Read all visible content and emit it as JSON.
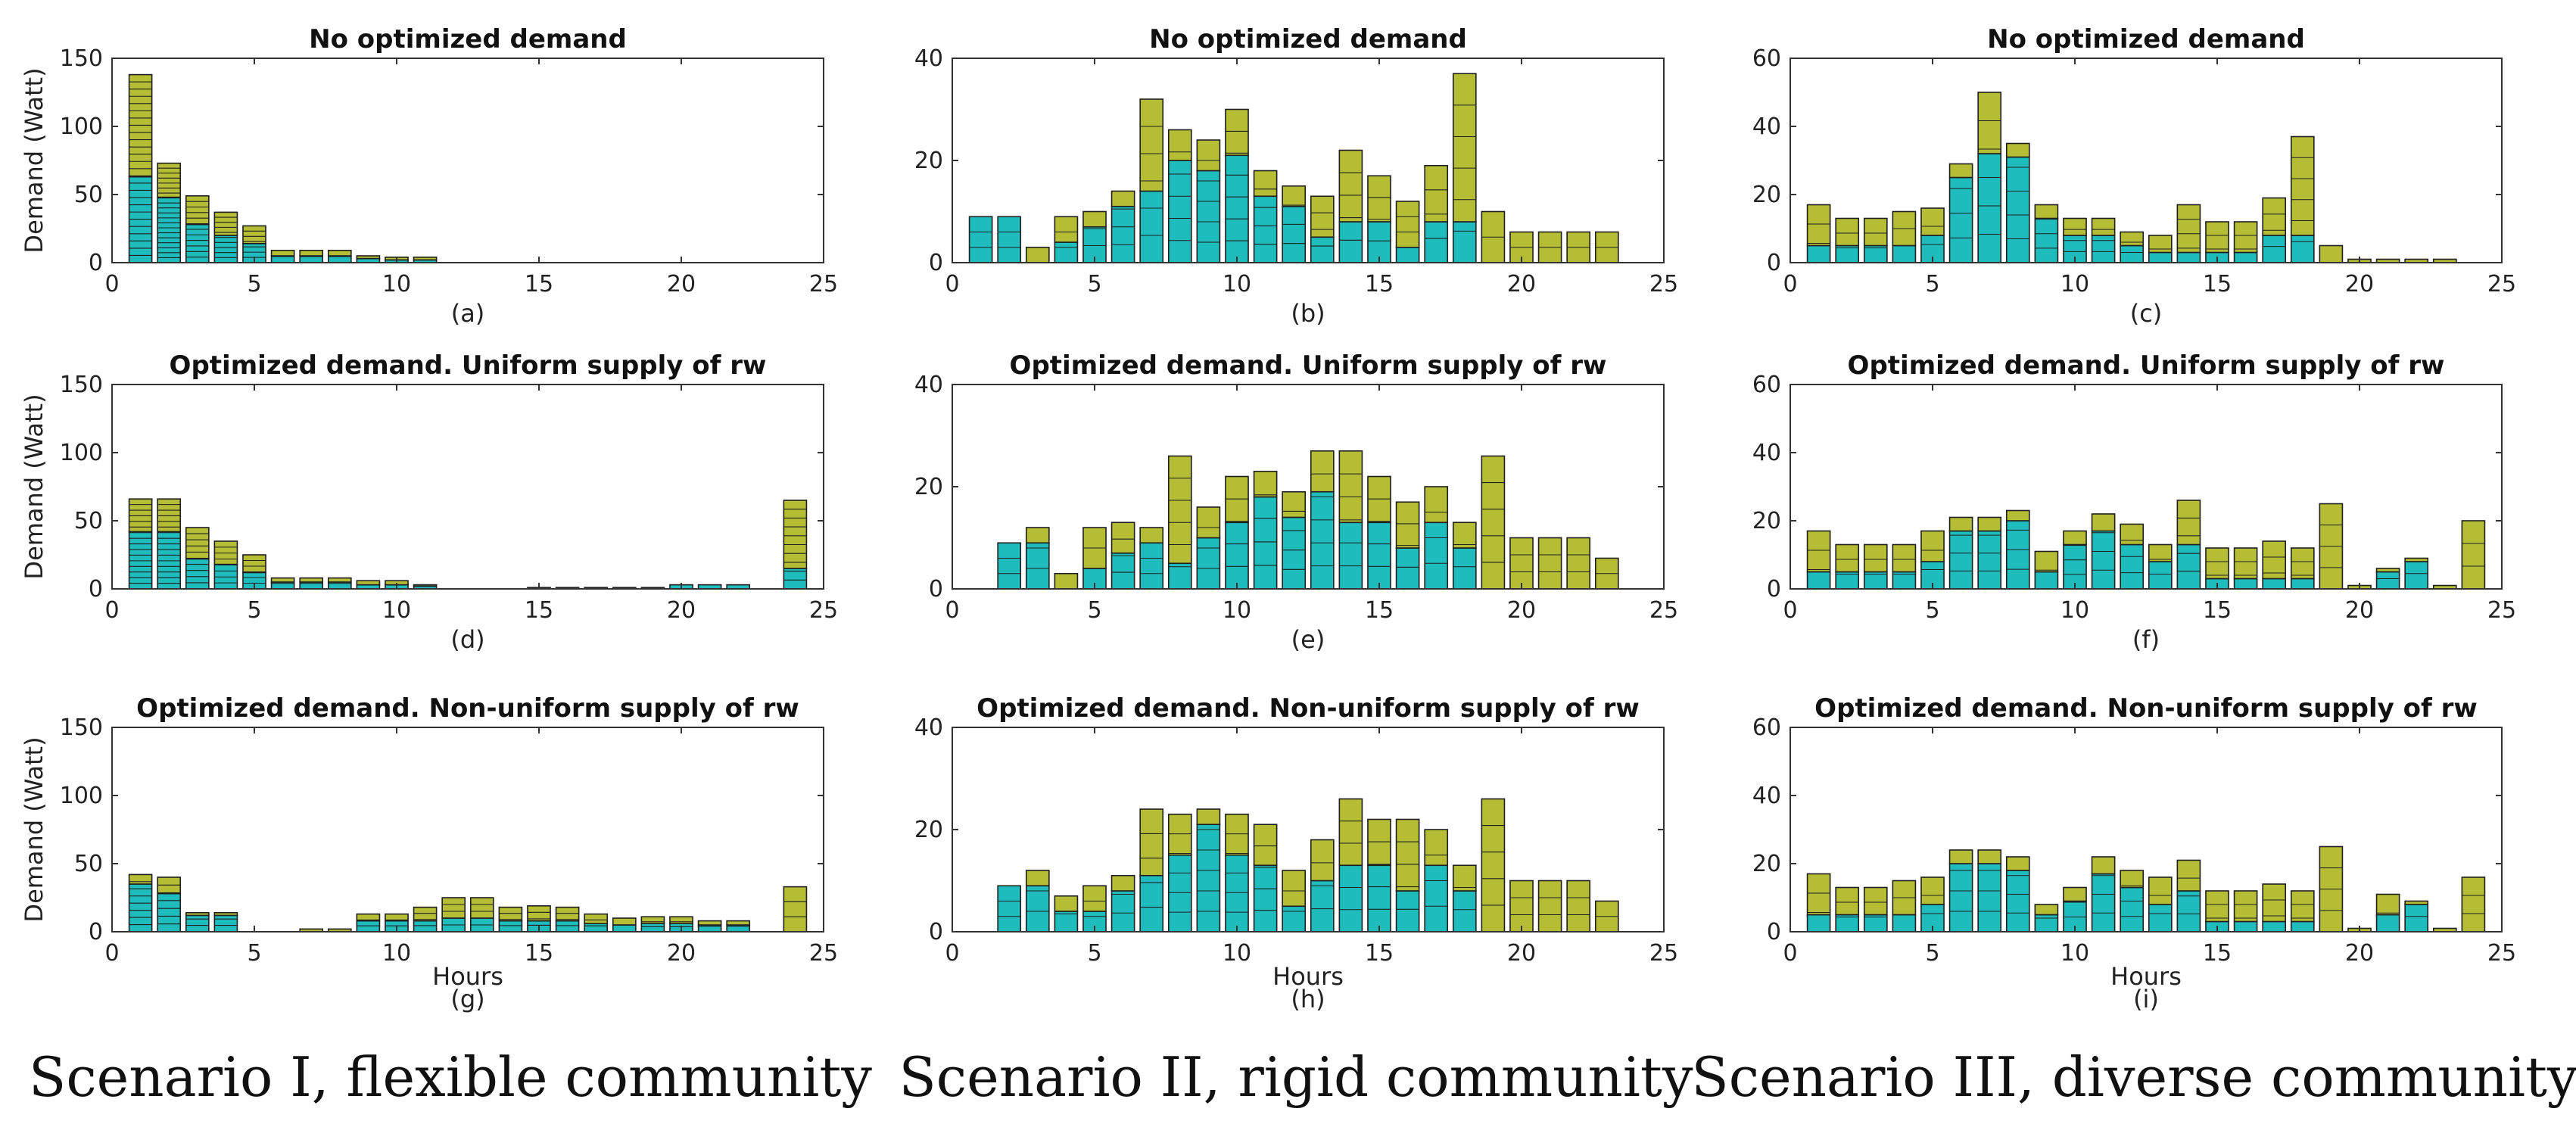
{
  "colors": {
    "base": "#1ebcbc",
    "flex": "#b5bd34"
  },
  "scenario_labels": [
    "Scenario I, flexible community",
    "Scenario II, rigid community",
    "Scenario III, diverse community"
  ],
  "chart_data": [
    {
      "id": "a",
      "type": "bar",
      "title": "No optimized demand",
      "subplot_label": "(a)",
      "ylabel": "Demand (Watt)",
      "xlabel": "",
      "ylim": [
        0,
        150
      ],
      "yticks": [
        0,
        50,
        100,
        150
      ],
      "xlim": [
        0,
        25
      ],
      "xticks": [
        0,
        5,
        10,
        15,
        20,
        25
      ],
      "x": [
        1,
        2,
        3,
        4,
        5,
        6,
        7,
        8,
        9,
        10,
        11
      ],
      "series": [
        {
          "name": "base",
          "values": [
            63,
            48,
            28,
            20,
            14,
            5,
            5,
            5,
            3,
            2,
            2
          ]
        },
        {
          "name": "flex",
          "values": [
            75,
            25,
            21,
            17,
            13,
            4,
            4,
            4,
            2,
            2,
            2
          ]
        }
      ],
      "segments": [
        26,
        20,
        12,
        10,
        7,
        2,
        2,
        2,
        1,
        1,
        1
      ]
    },
    {
      "id": "b",
      "type": "bar",
      "title": "No optimized demand",
      "subplot_label": "(b)",
      "ylabel": "",
      "xlabel": "",
      "ylim": [
        0,
        40
      ],
      "yticks": [
        0,
        20,
        40
      ],
      "xlim": [
        0,
        25
      ],
      "xticks": [
        0,
        5,
        10,
        15,
        20,
        25
      ],
      "x": [
        1,
        2,
        3,
        4,
        5,
        6,
        7,
        8,
        9,
        10,
        11,
        12,
        13,
        14,
        15,
        16,
        17,
        18,
        19,
        20,
        21,
        22,
        23
      ],
      "series": [
        {
          "name": "base",
          "values": [
            9,
            9,
            0,
            4,
            7,
            11,
            14,
            20,
            18,
            21,
            13,
            11,
            5,
            8,
            8,
            3,
            8,
            8,
            0,
            0,
            0,
            0,
            0
          ]
        },
        {
          "name": "flex",
          "values": [
            0,
            0,
            3,
            5,
            3,
            3,
            18,
            6,
            6,
            9,
            5,
            4,
            8,
            14,
            9,
            9,
            11,
            29,
            10,
            6,
            6,
            6,
            6
          ]
        }
      ],
      "segments": [
        3,
        3,
        1,
        3,
        3,
        4,
        6,
        6,
        6,
        7,
        5,
        4,
        4,
        5,
        4,
        4,
        4,
        6,
        2,
        2,
        2,
        2,
        2
      ]
    },
    {
      "id": "c",
      "type": "bar",
      "title": "No optimized demand",
      "subplot_label": "(c)",
      "ylabel": "",
      "xlabel": "",
      "ylim": [
        0,
        60
      ],
      "yticks": [
        0,
        20,
        40,
        60
      ],
      "xlim": [
        0,
        25
      ],
      "xticks": [
        0,
        5,
        10,
        15,
        20,
        25
      ],
      "x": [
        1,
        2,
        3,
        4,
        5,
        6,
        7,
        8,
        9,
        10,
        11,
        12,
        13,
        14,
        15,
        16,
        17,
        18,
        19,
        20,
        21,
        22,
        23
      ],
      "series": [
        {
          "name": "base",
          "values": [
            5,
            5,
            5,
            5,
            8,
            25,
            32,
            31,
            13,
            8,
            8,
            5,
            3,
            3,
            3,
            3,
            8,
            8,
            0,
            0,
            0,
            0,
            0
          ]
        },
        {
          "name": "flex",
          "values": [
            12,
            8,
            8,
            10,
            8,
            4,
            18,
            4,
            4,
            5,
            5,
            4,
            5,
            14,
            9,
            9,
            11,
            29,
            5,
            1,
            1,
            1,
            1
          ]
        }
      ],
      "segments": [
        3,
        3,
        3,
        3,
        3,
        4,
        6,
        5,
        4,
        4,
        4,
        3,
        2,
        4,
        3,
        3,
        4,
        6,
        1,
        1,
        1,
        1,
        1
      ]
    },
    {
      "id": "d",
      "type": "bar",
      "title": "Optimized demand. Uniform supply of rw",
      "subplot_label": "(d)",
      "ylabel": "Demand (Watt)",
      "xlabel": "",
      "ylim": [
        0,
        150
      ],
      "yticks": [
        0,
        50,
        100,
        150
      ],
      "xlim": [
        0,
        25
      ],
      "xticks": [
        0,
        5,
        10,
        15,
        20,
        25
      ],
      "x": [
        1,
        2,
        3,
        4,
        5,
        6,
        7,
        8,
        9,
        10,
        11,
        15,
        16,
        17,
        18,
        19,
        20,
        21,
        22,
        24
      ],
      "series": [
        {
          "name": "base",
          "values": [
            42,
            42,
            22,
            18,
            12,
            5,
            5,
            5,
            3,
            3,
            2,
            1,
            1,
            1,
            1,
            1,
            3,
            3,
            3,
            15
          ]
        },
        {
          "name": "flex",
          "values": [
            24,
            24,
            23,
            17,
            13,
            3,
            3,
            3,
            3,
            3,
            1,
            0,
            0,
            0,
            0,
            0,
            0,
            0,
            0,
            50
          ]
        }
      ],
      "segments": [
        16,
        16,
        10,
        8,
        6,
        2,
        2,
        2,
        2,
        2,
        1,
        1,
        1,
        1,
        1,
        1,
        1,
        1,
        1,
        10
      ]
    },
    {
      "id": "e",
      "type": "bar",
      "title": "Optimized demand. Uniform supply of rw",
      "subplot_label": "(e)",
      "ylabel": "",
      "xlabel": "",
      "ylim": [
        0,
        40
      ],
      "yticks": [
        0,
        20,
        40
      ],
      "xlim": [
        0,
        25
      ],
      "xticks": [
        0,
        5,
        10,
        15,
        20,
        25
      ],
      "x": [
        2,
        3,
        4,
        5,
        6,
        7,
        8,
        9,
        10,
        11,
        12,
        13,
        14,
        15,
        16,
        17,
        18,
        19,
        20,
        21,
        22,
        23
      ],
      "series": [
        {
          "name": "base",
          "values": [
            9,
            9,
            0,
            4,
            7,
            9,
            5,
            10,
            13,
            18,
            14,
            19,
            13,
            13,
            8,
            13,
            8,
            0,
            0,
            0,
            0,
            0
          ]
        },
        {
          "name": "flex",
          "values": [
            0,
            3,
            3,
            8,
            6,
            3,
            21,
            6,
            9,
            5,
            5,
            8,
            14,
            9,
            9,
            7,
            5,
            26,
            10,
            10,
            10,
            6
          ]
        }
      ],
      "segments": [
        3,
        3,
        1,
        3,
        4,
        4,
        6,
        4,
        5,
        5,
        5,
        6,
        6,
        5,
        4,
        4,
        3,
        5,
        3,
        3,
        3,
        2
      ]
    },
    {
      "id": "f",
      "type": "bar",
      "title": "Optimized demand. Uniform supply of rw",
      "subplot_label": "(f)",
      "ylabel": "",
      "xlabel": "",
      "ylim": [
        0,
        60
      ],
      "yticks": [
        0,
        20,
        40,
        60
      ],
      "xlim": [
        0,
        25
      ],
      "xticks": [
        0,
        5,
        10,
        15,
        20,
        25
      ],
      "x": [
        1,
        2,
        3,
        4,
        5,
        6,
        7,
        8,
        9,
        10,
        11,
        12,
        13,
        14,
        15,
        16,
        17,
        18,
        19,
        20,
        21,
        22,
        23,
        24
      ],
      "series": [
        {
          "name": "base",
          "values": [
            5,
            5,
            5,
            5,
            8,
            17,
            17,
            20,
            5,
            13,
            17,
            13,
            8,
            13,
            3,
            3,
            3,
            3,
            0,
            0,
            5,
            8,
            0,
            0
          ]
        },
        {
          "name": "flex",
          "values": [
            12,
            8,
            8,
            8,
            9,
            4,
            4,
            3,
            6,
            4,
            5,
            6,
            5,
            13,
            9,
            9,
            11,
            9,
            25,
            1,
            1,
            1,
            1,
            20
          ]
        }
      ],
      "segments": [
        3,
        3,
        3,
        3,
        3,
        4,
        4,
        4,
        2,
        4,
        4,
        4,
        3,
        5,
        3,
        3,
        3,
        3,
        4,
        1,
        2,
        2,
        1,
        3
      ]
    },
    {
      "id": "g",
      "type": "bar",
      "title": "Optimized demand. Non-uniform supply of rw",
      "subplot_label": "(g)",
      "ylabel": "Demand (Watt)",
      "xlabel": "Hours",
      "ylim": [
        0,
        150
      ],
      "yticks": [
        0,
        50,
        100,
        150
      ],
      "xlim": [
        0,
        25
      ],
      "xticks": [
        0,
        5,
        10,
        15,
        20,
        25
      ],
      "x": [
        1,
        2,
        3,
        4,
        7,
        8,
        9,
        10,
        11,
        12,
        13,
        14,
        15,
        16,
        17,
        18,
        19,
        20,
        21,
        22,
        24
      ],
      "series": [
        {
          "name": "base",
          "values": [
            35,
            28,
            12,
            12,
            0,
            0,
            8,
            8,
            8,
            10,
            10,
            8,
            8,
            8,
            6,
            5,
            6,
            6,
            5,
            5,
            0
          ]
        },
        {
          "name": "flex",
          "values": [
            7,
            12,
            2,
            2,
            2,
            2,
            5,
            5,
            10,
            15,
            15,
            10,
            11,
            10,
            7,
            5,
            5,
            5,
            3,
            3,
            33
          ]
        }
      ],
      "segments": [
        8,
        7,
        3,
        3,
        1,
        1,
        3,
        3,
        4,
        5,
        5,
        4,
        4,
        4,
        3,
        2,
        3,
        3,
        2,
        2,
        3
      ]
    },
    {
      "id": "h",
      "type": "bar",
      "title": "Optimized demand. Non-uniform supply of rw",
      "subplot_label": "(h)",
      "ylabel": "",
      "xlabel": "Hours",
      "ylim": [
        0,
        40
      ],
      "yticks": [
        0,
        20,
        40
      ],
      "xlim": [
        0,
        25
      ],
      "xticks": [
        0,
        5,
        10,
        15,
        20,
        25
      ],
      "x": [
        2,
        3,
        4,
        5,
        6,
        7,
        8,
        9,
        10,
        11,
        12,
        13,
        14,
        15,
        16,
        17,
        18,
        19,
        20,
        21,
        22,
        23
      ],
      "series": [
        {
          "name": "base",
          "values": [
            9,
            9,
            4,
            4,
            8,
            11,
            15,
            21,
            15,
            13,
            5,
            10,
            13,
            13,
            8,
            13,
            8,
            0,
            0,
            0,
            0,
            0
          ]
        },
        {
          "name": "flex",
          "values": [
            0,
            3,
            3,
            5,
            3,
            13,
            8,
            3,
            8,
            8,
            7,
            8,
            13,
            9,
            14,
            7,
            5,
            26,
            10,
            10,
            10,
            6
          ]
        }
      ],
      "segments": [
        3,
        3,
        2,
        3,
        3,
        5,
        6,
        6,
        6,
        5,
        3,
        4,
        6,
        5,
        5,
        4,
        3,
        5,
        3,
        3,
        3,
        2
      ]
    },
    {
      "id": "i",
      "type": "bar",
      "title": "Optimized demand. Non-uniform supply of rw",
      "subplot_label": "(i)",
      "ylabel": "",
      "xlabel": "Hours",
      "ylim": [
        0,
        60
      ],
      "yticks": [
        0,
        20,
        40,
        60
      ],
      "xlim": [
        0,
        25
      ],
      "xticks": [
        0,
        5,
        10,
        15,
        20,
        25
      ],
      "x": [
        1,
        2,
        3,
        4,
        5,
        6,
        7,
        8,
        9,
        10,
        11,
        12,
        13,
        14,
        15,
        16,
        17,
        18,
        19,
        20,
        21,
        22,
        23,
        24
      ],
      "series": [
        {
          "name": "base",
          "values": [
            5,
            5,
            5,
            5,
            8,
            20,
            20,
            18,
            5,
            9,
            17,
            13,
            8,
            12,
            3,
            3,
            3,
            3,
            0,
            0,
            5,
            8,
            0,
            0
          ]
        },
        {
          "name": "flex",
          "values": [
            12,
            8,
            8,
            10,
            8,
            4,
            4,
            4,
            3,
            4,
            5,
            5,
            8,
            9,
            9,
            9,
            11,
            9,
            25,
            1,
            6,
            1,
            1,
            16
          ]
        }
      ],
      "segments": [
        3,
        3,
        3,
        3,
        3,
        4,
        4,
        4,
        2,
        3,
        4,
        4,
        3,
        4,
        3,
        3,
        3,
        3,
        4,
        1,
        2,
        2,
        1,
        3
      ]
    }
  ]
}
